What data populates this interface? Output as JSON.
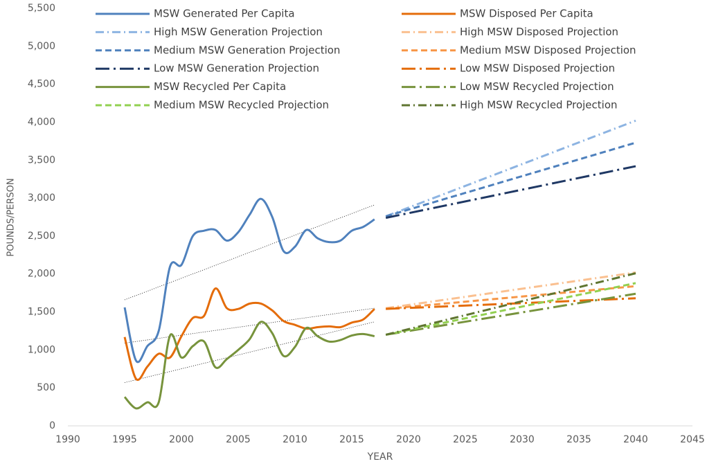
{
  "chart_data": {
    "type": "line",
    "x_label": "YEAR",
    "y_label": "POUNDS/PERSON",
    "xlim": [
      1990,
      2045
    ],
    "xticks": [
      1990,
      1995,
      2000,
      2005,
      2010,
      2015,
      2020,
      2025,
      2030,
      2035,
      2040,
      2045
    ],
    "ylim": [
      0,
      5500
    ],
    "yticks": [
      0,
      500,
      {
        "value": 1000,
        "label": "1,000"
      },
      {
        "value": 1500,
        "label": "1,500"
      },
      {
        "value": 2000,
        "label": "2,000"
      },
      {
        "value": 2500,
        "label": "2,500"
      },
      {
        "value": 3000,
        "label": "3,000"
      },
      {
        "value": 3500,
        "label": "3,500"
      },
      {
        "value": 4000,
        "label": "4,000"
      },
      {
        "value": 4500,
        "label": "4,500"
      },
      {
        "value": 5000,
        "label": "5,000"
      },
      {
        "value": 5500,
        "label": "5,500"
      }
    ],
    "legend": "top",
    "series": [
      {
        "name": "MSW Generated Per Capita",
        "color": "#4f81bd",
        "dash": "solid",
        "x": [
          1995,
          1996,
          1997,
          1998,
          1999,
          2000,
          2001,
          2002,
          2003,
          2004,
          2005,
          2006,
          2007,
          2008,
          2009,
          2010,
          2011,
          2012,
          2013,
          2014,
          2015,
          2016,
          2017
        ],
        "values": [
          1560,
          860,
          1050,
          1250,
          2100,
          2120,
          2500,
          2570,
          2580,
          2440,
          2550,
          2780,
          2990,
          2750,
          2300,
          2360,
          2580,
          2470,
          2420,
          2440,
          2570,
          2620,
          2720
        ]
      },
      {
        "name": "MSW Disposed Per Capita",
        "color": "#e46c0a",
        "dash": "solid",
        "x": [
          1995,
          1996,
          1997,
          1998,
          1999,
          2000,
          2001,
          2002,
          2003,
          2004,
          2005,
          2006,
          2007,
          2008,
          2009,
          2010,
          2011,
          2012,
          2013,
          2014,
          2015,
          2016,
          2017
        ],
        "values": [
          1170,
          620,
          780,
          950,
          900,
          1180,
          1420,
          1450,
          1810,
          1550,
          1540,
          1610,
          1610,
          1520,
          1380,
          1330,
          1280,
          1300,
          1310,
          1300,
          1360,
          1400,
          1540
        ]
      },
      {
        "name": "High MSW Generation Projection",
        "color": "#8db4e2",
        "dash": "dashdot",
        "x": [
          2018,
          2040
        ],
        "values": [
          2760,
          4020
        ]
      },
      {
        "name": "High MSW Disposed Projection",
        "color": "#fac090",
        "dash": "dashdot",
        "x": [
          2018,
          2040
        ],
        "values": [
          1550,
          2020
        ]
      },
      {
        "name": "Medium MSW Generation Projection",
        "color": "#4f81bd",
        "dash": "dash",
        "x": [
          2018,
          2040
        ],
        "values": [
          2760,
          3730
        ]
      },
      {
        "name": "Medium MSW Disposed Projection",
        "color": "#f79646",
        "dash": "dash",
        "x": [
          2018,
          2040
        ],
        "values": [
          1540,
          1840
        ]
      },
      {
        "name": "Low MSW Generation Projection",
        "color": "#1f3864",
        "dash": "longdashdot",
        "x": [
          2018,
          2040
        ],
        "values": [
          2740,
          3420
        ]
      },
      {
        "name": "Low MSW Disposed Projection",
        "color": "#e46c0a",
        "dash": "longdashdot",
        "x": [
          2018,
          2040
        ],
        "values": [
          1540,
          1680
        ]
      },
      {
        "name": "MSW Recycled Per Capita",
        "color": "#77933c",
        "dash": "solid",
        "x": [
          1995,
          1996,
          1997,
          1998,
          1999,
          2000,
          2001,
          2002,
          2003,
          2004,
          2005,
          2006,
          2007,
          2008,
          2009,
          2010,
          2011,
          2012,
          2013,
          2014,
          2015,
          2016,
          2017
        ],
        "values": [
          380,
          230,
          310,
          310,
          1190,
          900,
          1050,
          1110,
          770,
          880,
          1000,
          1140,
          1370,
          1220,
          920,
          1040,
          1290,
          1180,
          1110,
          1130,
          1190,
          1210,
          1180
        ]
      },
      {
        "name": "Low MSW Recycled Projection",
        "color": "#77933c",
        "dash": "longdashdot",
        "x": [
          2018,
          2040
        ],
        "values": [
          1200,
          1740
        ]
      },
      {
        "name": "Medium MSW Recycled Projection",
        "color": "#92d050",
        "dash": "dash",
        "x": [
          2018,
          2040
        ],
        "values": [
          1200,
          1880
        ]
      },
      {
        "name": "High MSW Recycled Projection",
        "color": "#5f7530",
        "dash": "dashdot",
        "x": [
          2018,
          2040
        ],
        "values": [
          1200,
          2010
        ]
      }
    ],
    "trendlines": [
      {
        "color": "#000000",
        "x": [
          1995,
          2017
        ],
        "values": [
          1660,
          2910
        ]
      },
      {
        "color": "#000000",
        "x": [
          1995,
          2017
        ],
        "values": [
          1090,
          1550
        ]
      },
      {
        "color": "#000000",
        "x": [
          1995,
          2017
        ],
        "values": [
          570,
          1370
        ]
      }
    ]
  }
}
